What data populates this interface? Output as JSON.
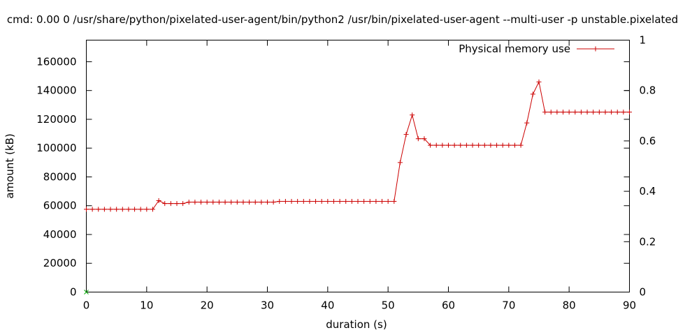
{
  "chart_data": {
    "type": "line",
    "title": "cmd: 0.00 0 /usr/share/python/pixelated-user-agent/bin/python2 /usr/bin/pixelated-user-agent --multi-user -p unstable.pixelated",
    "xlabel": "duration (s)",
    "ylabel": "amount (kB)",
    "xlim": [
      0,
      90
    ],
    "ylim": [
      0,
      175000
    ],
    "y2lim": [
      0,
      1
    ],
    "xticks": [
      0,
      10,
      20,
      30,
      40,
      50,
      60,
      70,
      80,
      90
    ],
    "yticks": [
      0,
      20000,
      40000,
      60000,
      80000,
      100000,
      120000,
      140000,
      160000
    ],
    "y2ticks": [
      0,
      0.2,
      0.4,
      0.6,
      0.8,
      1
    ],
    "grid": false,
    "legend_position": "top-right",
    "colors": {
      "series": "#cc0000",
      "marker_at_origin": "#00aa00",
      "axis": "#000000"
    },
    "series": [
      {
        "name": "Physical memory use",
        "x": [
          0,
          1,
          2,
          3,
          4,
          5,
          6,
          7,
          8,
          9,
          10,
          11,
          12,
          13,
          14,
          15,
          16,
          17,
          18,
          19,
          20,
          21,
          22,
          23,
          24,
          25,
          26,
          27,
          28,
          29,
          30,
          31,
          32,
          33,
          34,
          35,
          36,
          37,
          38,
          39,
          40,
          41,
          42,
          43,
          44,
          45,
          46,
          47,
          48,
          49,
          50,
          51,
          52,
          53,
          54,
          55,
          56,
          57,
          58,
          59,
          60,
          61,
          62,
          63,
          64,
          65,
          66,
          67,
          68,
          69,
          70,
          71,
          72,
          73,
          74,
          75,
          76,
          77,
          78,
          79,
          80,
          81,
          82,
          83,
          84,
          85,
          86,
          87,
          88,
          89,
          90
        ],
        "y": [
          57500,
          57500,
          57500,
          57500,
          57500,
          57500,
          57500,
          57500,
          57500,
          57500,
          57500,
          57500,
          63500,
          61500,
          61500,
          61500,
          61500,
          62500,
          62500,
          62500,
          62500,
          62500,
          62500,
          62500,
          62500,
          62500,
          62500,
          62500,
          62500,
          62500,
          62500,
          62500,
          63000,
          63000,
          63000,
          63000,
          63000,
          63000,
          63000,
          63000,
          63000,
          63000,
          63000,
          63000,
          63000,
          63000,
          63000,
          63000,
          63000,
          63000,
          63000,
          63000,
          90000,
          109500,
          123000,
          106500,
          106500,
          102000,
          102000,
          102000,
          102000,
          102000,
          102000,
          102000,
          102000,
          102000,
          102000,
          102000,
          102000,
          102000,
          102000,
          102000,
          102000,
          117500,
          137500,
          146000,
          125000,
          125000,
          125000,
          125000,
          125000,
          125000,
          125000,
          125000,
          125000,
          125000,
          125000,
          125000,
          125000,
          125000,
          125000
        ]
      }
    ],
    "origin_marker": {
      "x": 0,
      "y": 0
    }
  }
}
